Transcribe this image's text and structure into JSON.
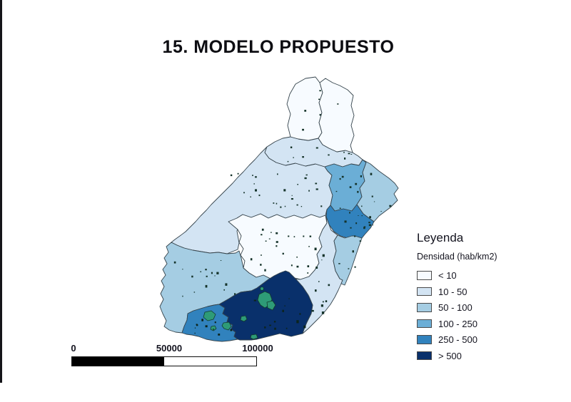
{
  "page": {
    "title": "15. MODELO PROPUESTO"
  },
  "legend": {
    "title": "Leyenda",
    "subtitle": "Densidad (hab/km2)",
    "classes": [
      {
        "label": "< 10",
        "color": "#F7FBFF"
      },
      {
        "label": "10 - 50",
        "color": "#D3E4F3"
      },
      {
        "label": "50 - 100",
        "color": "#A5CDE3"
      },
      {
        "label": "100 - 250",
        "color": "#6BAED6"
      },
      {
        "label": "250 - 500",
        "color": "#3182BD"
      },
      {
        "label": "> 500",
        "color": "#09306B"
      }
    ]
  },
  "scalebar": {
    "tick_0": "0",
    "tick_mid": "50000",
    "tick_end": "100000"
  },
  "map": {
    "border_color": "#36444c",
    "settlement_color": "#15332a",
    "settlement_color_dark": "#0c241c",
    "highlight_color": "#2E9B77",
    "regions": [
      {
        "id": "velez-oeste",
        "density_class": "< 10"
      },
      {
        "id": "velez-este",
        "density_class": "< 10"
      },
      {
        "id": "almanzora-norte",
        "density_class": "10 - 50"
      },
      {
        "id": "filabres",
        "density_class": "10 - 50"
      },
      {
        "id": "huercal-overa",
        "density_class": "100 - 250"
      },
      {
        "id": "pulpi-cuevas",
        "density_class": "50 - 100"
      },
      {
        "id": "vera-garrucha",
        "density_class": "250 - 500"
      },
      {
        "id": "tabernas",
        "density_class": "< 10"
      },
      {
        "id": "sierra-gador",
        "density_class": "50 - 100"
      },
      {
        "id": "nijar",
        "density_class": "10 - 50"
      },
      {
        "id": "carboneras",
        "density_class": "50 - 100"
      },
      {
        "id": "poniente",
        "density_class": "250 - 500"
      },
      {
        "id": "almeria-capital",
        "density_class": "> 500"
      }
    ]
  }
}
